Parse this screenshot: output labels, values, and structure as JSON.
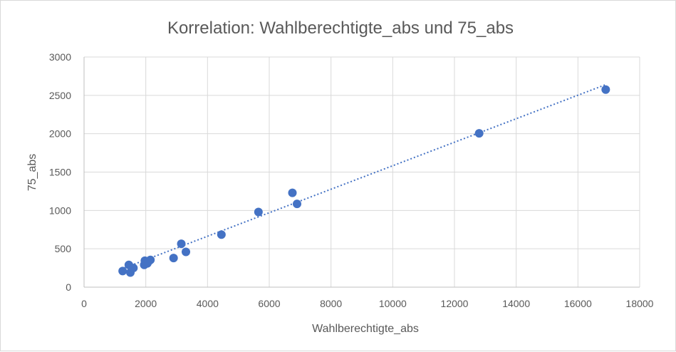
{
  "chart_data": {
    "type": "scatter",
    "title": "Korrelation: Wahlberechtigte_abs und 75_abs",
    "xlabel": "Wahlberechtigte_abs",
    "ylabel": "75_abs",
    "xlim": [
      0,
      18000
    ],
    "ylim": [
      0,
      3000
    ],
    "xticks": [
      0,
      2000,
      4000,
      6000,
      8000,
      10000,
      12000,
      14000,
      16000,
      18000
    ],
    "yticks": [
      0,
      500,
      1000,
      1500,
      2000,
      2500,
      3000
    ],
    "grid": true,
    "colors": {
      "points": "#4472c4",
      "trendline": "#4472c4"
    },
    "trendline": {
      "type": "linear-dotted",
      "x": [
        1300,
        16900
      ],
      "y": [
        250,
        2640
      ]
    },
    "points": [
      {
        "x": 1250,
        "y": 210
      },
      {
        "x": 1450,
        "y": 290
      },
      {
        "x": 1500,
        "y": 190
      },
      {
        "x": 1600,
        "y": 250
      },
      {
        "x": 1950,
        "y": 290
      },
      {
        "x": 1970,
        "y": 345
      },
      {
        "x": 2050,
        "y": 310
      },
      {
        "x": 2100,
        "y": 340
      },
      {
        "x": 2150,
        "y": 355
      },
      {
        "x": 2900,
        "y": 380
      },
      {
        "x": 3150,
        "y": 565
      },
      {
        "x": 3300,
        "y": 460
      },
      {
        "x": 4450,
        "y": 685
      },
      {
        "x": 5650,
        "y": 980
      },
      {
        "x": 6750,
        "y": 1230
      },
      {
        "x": 6900,
        "y": 1085
      },
      {
        "x": 12800,
        "y": 2005
      },
      {
        "x": 16900,
        "y": 2575
      }
    ]
  }
}
